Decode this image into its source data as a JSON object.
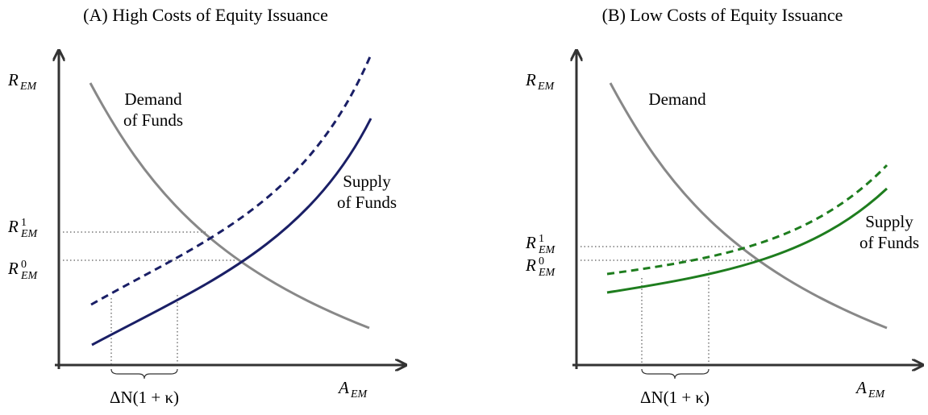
{
  "panels": [
    {
      "title": "(A) High Costs of Equity Issuance",
      "y_label": {
        "base": "R",
        "sub": "EM"
      },
      "x_label": {
        "base": "A",
        "sub": "EM"
      },
      "demand_label": [
        "Demand",
        "of Funds"
      ],
      "supply_label": [
        "Supply",
        "of Funds"
      ],
      "r1": {
        "base": "R",
        "sup": "1",
        "sub": "EM"
      },
      "r0": {
        "base": "R",
        "sup": "0",
        "sub": "EM"
      },
      "brace_label": "ΔN(1 + κ)"
    },
    {
      "title": "(B) Low Costs of Equity Issuance",
      "y_label": {
        "base": "R",
        "sub": "EM"
      },
      "x_label": {
        "base": "A",
        "sub": "EM"
      },
      "demand_label": [
        "Demand"
      ],
      "supply_label": [
        "Supply",
        "of Funds"
      ],
      "r1": {
        "base": "R",
        "sup": "1",
        "sub": "EM"
      },
      "r0": {
        "base": "R",
        "sup": "0",
        "sub": "EM"
      },
      "brace_label": "ΔN(1 + κ)"
    }
  ]
}
